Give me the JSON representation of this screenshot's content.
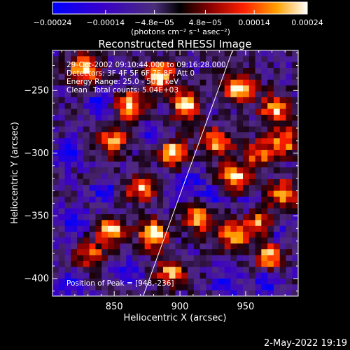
{
  "chart_data": {
    "type": "heatmap",
    "title": "Reconstructed RHESSI Image",
    "xlabel": "Heliocentric X (arcsec)",
    "ylabel": "Heliocentric Y (arcsec)",
    "xlim": [
      803,
      990
    ],
    "ylim": [
      -414,
      -218
    ],
    "x_ticks": [
      850,
      900,
      950
    ],
    "x_tick_labels": [
      "850",
      "900",
      "950"
    ],
    "y_ticks": [
      -250,
      -300,
      -350,
      -400
    ],
    "y_tick_labels": [
      "−250",
      "−300",
      "−350",
      "−400"
    ],
    "colorbar": {
      "range": [
        -0.00024,
        0.00024
      ],
      "ticks": [
        -0.00024,
        -0.00014,
        -4.8e-05,
        4.8e-05,
        0.00014,
        0.00024
      ],
      "tick_labels": [
        "−0.00024",
        "−0.00014",
        "−4.8e−05",
        "4.8e−05",
        "0.00014",
        "0.00024"
      ],
      "units_label": "(photons cm⁻² s⁻¹ asec⁻²)"
    },
    "limb_line": [
      [
        872,
        -414
      ],
      [
        940,
        -218
      ]
    ],
    "info": {
      "time_range": "29-Oct-2002 09:10:44.000 to 09:16:28.000",
      "detectors": "Detectors: 3F 4F 5F 6F 7F 8F, Att 0",
      "energy": "Energy Range: 25.0 - 50.0 keV",
      "method": "Clean",
      "counts": "Total counts: 5.04E+03",
      "peak": "Position of Peak = [948,-236]"
    },
    "footer_date": "2-May-2022 19:19",
    "grid_size": [
      40,
      42
    ],
    "hot_spots": [
      {
        "x": 827,
        "y": -232,
        "amp": 1.0
      },
      {
        "x": 862,
        "y": -262,
        "amp": 0.9
      },
      {
        "x": 885,
        "y": -238,
        "amp": 1.0
      },
      {
        "x": 905,
        "y": -262,
        "amp": 0.95
      },
      {
        "x": 928,
        "y": -292,
        "amp": 0.85
      },
      {
        "x": 945,
        "y": -248,
        "amp": 1.0
      },
      {
        "x": 972,
        "y": -265,
        "amp": 0.85
      },
      {
        "x": 848,
        "y": -290,
        "amp": 0.8
      },
      {
        "x": 895,
        "y": -300,
        "amp": 0.9
      },
      {
        "x": 870,
        "y": -328,
        "amp": 0.8
      },
      {
        "x": 942,
        "y": -320,
        "amp": 0.95
      },
      {
        "x": 978,
        "y": -332,
        "amp": 0.8
      },
      {
        "x": 960,
        "y": -300,
        "amp": 0.7
      },
      {
        "x": 848,
        "y": -362,
        "amp": 0.9
      },
      {
        "x": 880,
        "y": -365,
        "amp": 1.0
      },
      {
        "x": 915,
        "y": -352,
        "amp": 0.8
      },
      {
        "x": 940,
        "y": -365,
        "amp": 0.85
      },
      {
        "x": 968,
        "y": -382,
        "amp": 0.8
      },
      {
        "x": 832,
        "y": -382,
        "amp": 0.65
      },
      {
        "x": 893,
        "y": -395,
        "amp": 0.75
      },
      {
        "x": 980,
        "y": -290,
        "amp": 0.75
      },
      {
        "x": 960,
        "y": -355,
        "amp": 0.7
      }
    ],
    "cold_spots": [
      {
        "x": 838,
        "y": -262,
        "amp": 0.9
      },
      {
        "x": 815,
        "y": -300,
        "amp": 0.8
      },
      {
        "x": 818,
        "y": -355,
        "amp": 0.9
      },
      {
        "x": 842,
        "y": -330,
        "amp": 0.7
      },
      {
        "x": 905,
        "y": -325,
        "amp": 0.75
      },
      {
        "x": 878,
        "y": -285,
        "amp": 0.6
      },
      {
        "x": 935,
        "y": -405,
        "amp": 0.8
      },
      {
        "x": 965,
        "y": -405,
        "amp": 0.75
      },
      {
        "x": 952,
        "y": -340,
        "amp": 0.5
      },
      {
        "x": 925,
        "y": -335,
        "amp": 0.6
      },
      {
        "x": 975,
        "y": -365,
        "amp": 0.55
      },
      {
        "x": 860,
        "y": -395,
        "amp": 0.6
      },
      {
        "x": 815,
        "y": -405,
        "amp": 0.7
      }
    ]
  }
}
